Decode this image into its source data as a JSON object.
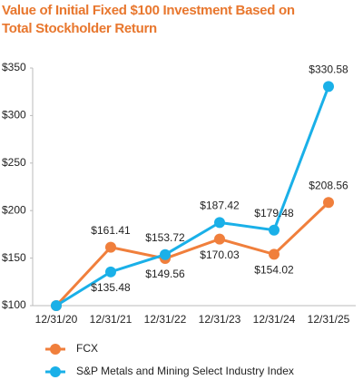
{
  "chart_data": {
    "type": "line",
    "title": "Value of Initial Fixed $100 Investment Based on Total Stockholder Return",
    "categories": [
      "12/31/20",
      "12/31/21",
      "12/31/22",
      "12/31/23",
      "12/31/24",
      "12/31/25"
    ],
    "series": [
      {
        "name": "FCX",
        "color": "#f07f3c",
        "values": [
          100,
          161.41,
          149.56,
          170.03,
          154.02,
          208.56
        ],
        "value_labels": [
          null,
          "$161.41",
          "$149.56",
          "$170.03",
          "$154.02",
          "$208.56"
        ]
      },
      {
        "name": "S&P Metals and Mining Select Industry Index",
        "color": "#1ab0e8",
        "values": [
          100,
          135.48,
          153.72,
          187.42,
          179.48,
          330.58
        ],
        "value_labels": [
          null,
          "$135.48",
          "$153.72",
          "$187.42",
          "$179.48",
          "$330.58"
        ]
      }
    ],
    "ylim": [
      100,
      350
    ],
    "yticks": [
      {
        "value": 100,
        "label": "$100"
      },
      {
        "value": 150,
        "label": "$150"
      },
      {
        "value": 200,
        "label": "$200"
      },
      {
        "value": 250,
        "label": "$250"
      },
      {
        "value": 300,
        "label": "$300"
      },
      {
        "value": 350,
        "label": "$350"
      }
    ]
  }
}
